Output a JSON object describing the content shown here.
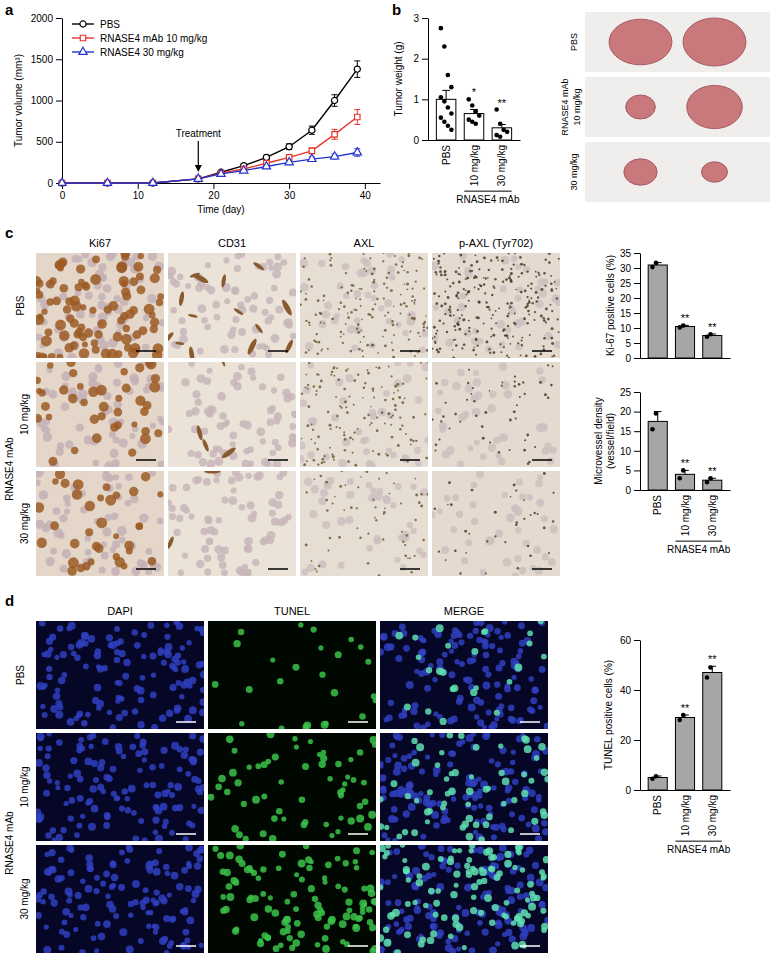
{
  "chart_data": [
    {
      "panel": "a",
      "type": "line",
      "x_label": "Time (day)",
      "y_label": "Tumor volume (mm³)",
      "x": [
        0,
        6,
        12,
        18,
        21,
        24,
        27,
        30,
        33,
        36,
        39
      ],
      "xlim": [
        0,
        42
      ],
      "xticks": [
        0,
        10,
        20,
        30,
        40
      ],
      "ylim": [
        0,
        2000
      ],
      "yticks": [
        0,
        500,
        1000,
        1500,
        2000
      ],
      "legend": "top-left",
      "series": [
        {
          "name": "PBS",
          "color": "#000000",
          "marker": "circle",
          "values": [
            0,
            0,
            0,
            50,
            130,
            210,
            310,
            440,
            640,
            1000,
            1380
          ],
          "errors": [
            0,
            0,
            0,
            5,
            12,
            20,
            28,
            35,
            50,
            70,
            100
          ]
        },
        {
          "name": "RNASE4 mAb 10 mg/kg",
          "color": "#e8332a",
          "marker": "square",
          "values": [
            0,
            0,
            0,
            50,
            120,
            170,
            240,
            310,
            390,
            590,
            800
          ],
          "errors": [
            0,
            0,
            0,
            5,
            10,
            15,
            20,
            30,
            35,
            60,
            90
          ]
        },
        {
          "name": "RNASE4 30 mg/kg",
          "color": "#2233cc",
          "marker": "triangle",
          "values": [
            0,
            0,
            0,
            50,
            110,
            150,
            200,
            250,
            290,
            320,
            370
          ],
          "errors": [
            0,
            0,
            0,
            5,
            8,
            12,
            15,
            20,
            25,
            30,
            45
          ]
        }
      ],
      "annotations": [
        {
          "text": "Treatment",
          "x": 18,
          "y": 120
        }
      ]
    },
    {
      "panel": "b",
      "type": "bar",
      "categories": [
        "PBS",
        "10 mg/kg",
        "30 mg/kg"
      ],
      "group_label": "RNASE4 mAb",
      "y_label": "Tumor weight (g)",
      "ylim": [
        0,
        3
      ],
      "yticks": [
        0,
        1,
        2,
        3
      ],
      "color": "#ffffff",
      "values": [
        1,
        0.65,
        0.3
      ],
      "errors": [
        0.22,
        0.1,
        0.08
      ],
      "points": [
        [
          2.75,
          2.3,
          1.6,
          1.3,
          1.05,
          0.95,
          0.8,
          0.65,
          0.55,
          0.45,
          0.35,
          0.25
        ],
        [
          1,
          0.85,
          0.7,
          0.6,
          0.5,
          0.45,
          0.4
        ],
        [
          0.75,
          0.4,
          0.25,
          0.2,
          0.12,
          0.08
        ]
      ],
      "significance": [
        null,
        "*",
        "**"
      ]
    },
    {
      "type": "bar",
      "categories": [
        null,
        null,
        null
      ],
      "y_label": "Ki-67 positive cells (%)",
      "ylim": [
        0,
        35
      ],
      "yticks": [
        0,
        5,
        10,
        15,
        20,
        25,
        30,
        35
      ],
      "color": "#a6a6a6",
      "values": [
        31,
        10.5,
        7.5
      ],
      "errors": [
        0.8,
        0.4,
        0.5
      ],
      "points": [
        [
          30.3,
          31.7
        ],
        [
          10.2,
          10.8
        ],
        [
          7.1,
          7.9
        ]
      ],
      "significance": [
        null,
        "**",
        "**"
      ]
    },
    {
      "type": "bar",
      "categories": [
        "PBS",
        "10 mg/kg",
        "30 mg/kg"
      ],
      "group_label": "RNASE4 mAb",
      "y_label": [
        "Microvessel density",
        "(vessel/field)"
      ],
      "ylim": [
        0,
        25
      ],
      "yticks": [
        0,
        5,
        10,
        15,
        20,
        25
      ],
      "color": "#a6a6a6",
      "values": [
        17.5,
        4,
        2.5
      ],
      "errors": [
        2.5,
        1,
        0.5
      ],
      "points": [
        [
          15.5,
          19.5
        ],
        [
          3,
          5
        ],
        [
          2,
          3
        ]
      ],
      "significance": [
        null,
        "**",
        "**"
      ]
    },
    {
      "type": "bar",
      "categories": [
        "PBS",
        "10 mg/kg",
        "30 mg/kg"
      ],
      "group_label": "RNASE4 mAb",
      "y_label": "TUNEL positive cells (%)",
      "ylim": [
        0,
        60
      ],
      "yticks": [
        0,
        20,
        40,
        60
      ],
      "color": "#a6a6a6",
      "values": [
        5,
        29,
        47
      ],
      "errors": [
        0.6,
        1,
        2.5
      ],
      "points": [
        [
          4.5,
          5.5
        ],
        [
          28,
          30
        ],
        [
          45,
          49
        ]
      ],
      "significance": [
        null,
        "**",
        "**"
      ]
    }
  ],
  "images": {
    "panel_b_photo": {
      "rows": [
        "PBS",
        "10 mg/kg",
        "30 mg/kg"
      ],
      "group_label": "RNASE4 mAb"
    },
    "panel_c": {
      "label": "c",
      "columns": [
        "Ki67",
        "CD31",
        "AXL",
        "p-AXL (Tyr702)"
      ],
      "rows": [
        "PBS",
        "10 mg/kg",
        "30 mg/kg"
      ],
      "group_label": "RNASE4 mAb"
    },
    "panel_d": {
      "label": "d",
      "columns": [
        "DAPI",
        "TUNEL",
        "MERGE"
      ],
      "rows": [
        "PBS",
        "10 mg/kg",
        "30 mg/kg"
      ],
      "group_label": "RNASE4 mAb"
    }
  }
}
